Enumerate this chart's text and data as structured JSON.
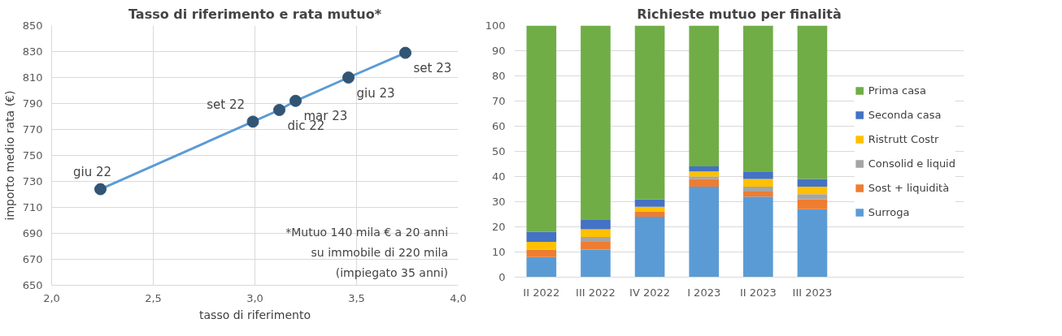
{
  "chart_data": [
    {
      "type": "line",
      "title": "Tasso di riferimento e rata mutuo*",
      "xlabel": "tasso di riferimento",
      "ylabel": "importo medio rata (€)",
      "x": [
        2.24,
        2.99,
        3.12,
        3.2,
        3.46,
        3.74
      ],
      "series": [
        {
          "color": "#5b9bd5",
          "values": [
            724,
            776,
            785,
            792,
            810,
            829
          ]
        }
      ],
      "marker": "circle",
      "grid": true,
      "xlim": [
        2.0,
        4.0
      ],
      "xticks": [
        {
          "value": 2.0,
          "label": "2,0"
        },
        {
          "value": 2.5,
          "label": "2,5"
        },
        {
          "value": 3.0,
          "label": "3,0"
        },
        {
          "value": 3.5,
          "label": "3,5"
        },
        {
          "value": 4.0,
          "label": "4,0"
        }
      ],
      "ylim": [
        650,
        850
      ],
      "yticks": [
        650,
        670,
        690,
        710,
        730,
        750,
        770,
        790,
        810,
        830,
        850
      ],
      "annotations": [
        {
          "text": "giu 22",
          "x": 2.24,
          "y": 724
        },
        {
          "text": "set 22",
          "x": 2.99,
          "y": 776
        },
        {
          "text": "dic 22",
          "x": 3.12,
          "y": 785
        },
        {
          "text": "mar 23",
          "x": 3.2,
          "y": 792
        },
        {
          "text": "giu 23",
          "x": 3.46,
          "y": 810
        },
        {
          "text": "set 23",
          "x": 3.74,
          "y": 829
        },
        "*Mutuo  140 mila € a 20 anni",
        "su immobile  di 220 mila",
        "(impiegato  35 anni)"
      ]
    },
    {
      "type": "bar",
      "title": "Richieste mutuo per finalità",
      "stacked": true,
      "categories": [
        "II 2022",
        "III 2022",
        "IV 2022",
        "I 2023",
        "II 2023",
        "III 2023"
      ],
      "series": [
        {
          "name": "Surroga",
          "color": "#5b9bd5",
          "values": [
            8,
            11,
            24,
            36,
            32,
            27
          ]
        },
        {
          "name": "Sost + liquidità",
          "color": "#ed7d31",
          "values": [
            3,
            3,
            2,
            3,
            2,
            4
          ]
        },
        {
          "name": "Consolid e liquid",
          "color": "#a5a5a5",
          "values": [
            0,
            2,
            0,
            1,
            2,
            2
          ]
        },
        {
          "name": "Ristrutt Costr",
          "color": "#ffc000",
          "values": [
            3,
            3,
            2,
            2,
            3,
            3
          ]
        },
        {
          "name": "Seconda casa",
          "color": "#4472c4",
          "values": [
            4,
            4,
            3,
            2,
            3,
            3
          ]
        },
        {
          "name": "Prima casa",
          "color": "#70ad47",
          "values": [
            82,
            77,
            69,
            56,
            58,
            61
          ]
        }
      ],
      "ylim": [
        0,
        100
      ],
      "yticks": [
        0,
        10,
        20,
        30,
        40,
        50,
        60,
        70,
        80,
        90,
        100
      ],
      "grid": "y",
      "legend": "right"
    }
  ]
}
